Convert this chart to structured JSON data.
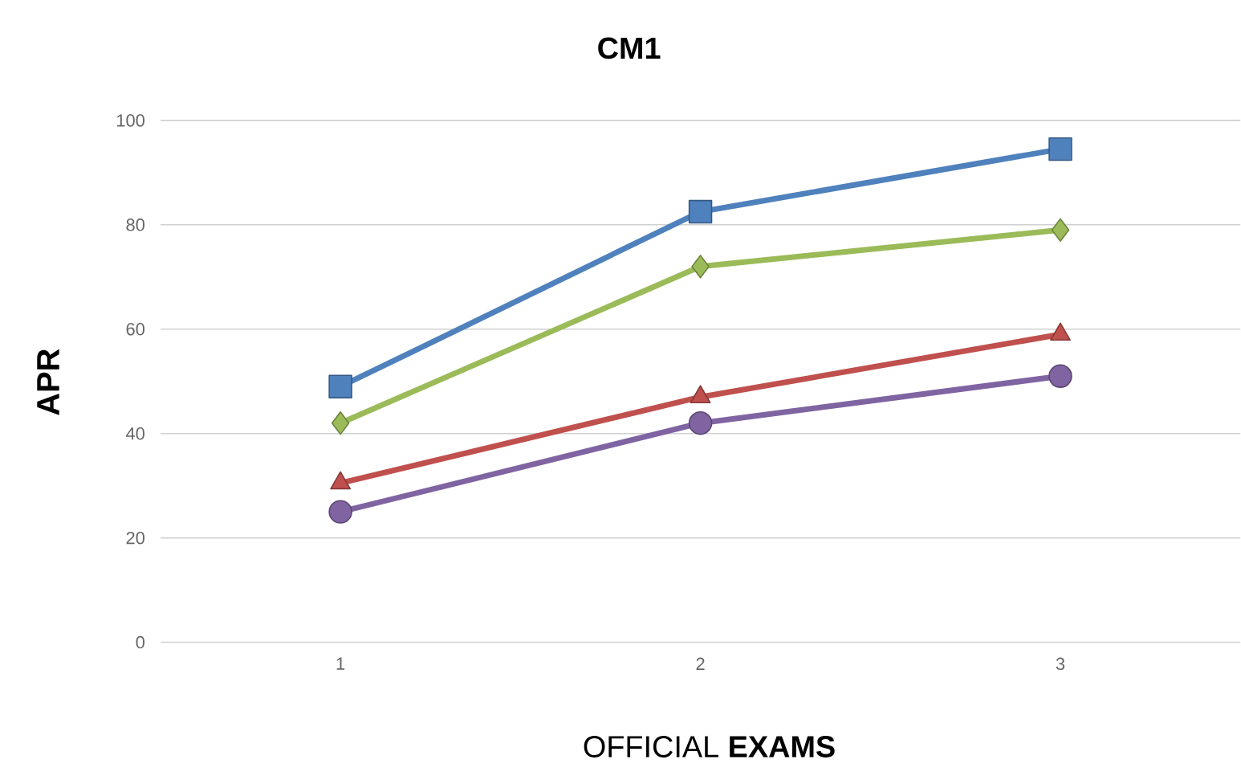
{
  "chart_data": {
    "type": "line",
    "title": "CM1",
    "xlabel": "OFFICIAL **EXAMS**",
    "ylabel": "APR",
    "categories": [
      "1",
      "2",
      "3"
    ],
    "ylim": [
      0,
      100
    ],
    "yticks": [
      0,
      20,
      40,
      60,
      80,
      100
    ],
    "grid": "y",
    "line_style": "solid",
    "series": [
      {
        "color": "#4f81bd",
        "marker": "square",
        "values": [
          49,
          82.5,
          94.5
        ]
      },
      {
        "color": "#9bbb59",
        "marker": "diamond",
        "values": [
          42,
          72,
          79
        ]
      },
      {
        "color": "#c0504d",
        "marker": "triangle",
        "values": [
          30.5,
          47,
          59
        ]
      },
      {
        "color": "#8064a2",
        "marker": "circle",
        "values": [
          25,
          42,
          51
        ]
      }
    ]
  }
}
